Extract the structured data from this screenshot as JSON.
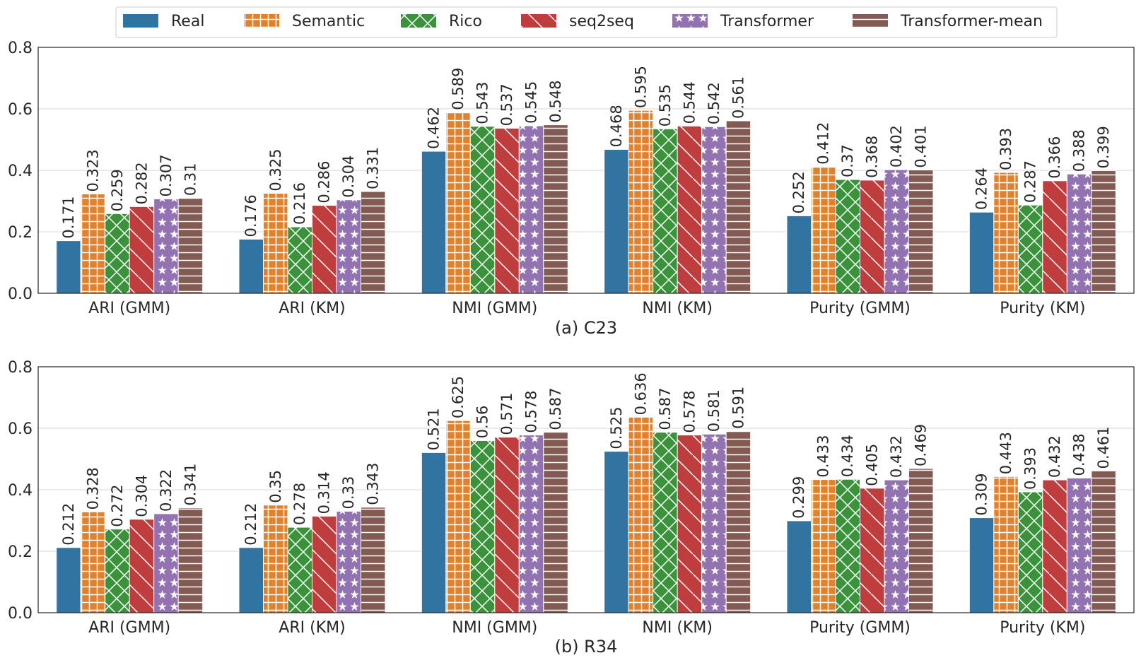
{
  "colors": {
    "Real": "#3274a1",
    "Semantic": "#e1812c",
    "Rico": "#3a923a",
    "seq2seq": "#c03d3e",
    "Transformer": "#9372b2",
    "Transformer-mean": "#845b53"
  },
  "legend": {
    "entries": [
      "Real",
      "Semantic",
      "Rico",
      "seq2seq",
      "Transformer",
      "Transformer-mean"
    ],
    "placement": "top-center"
  },
  "chart_data": [
    {
      "type": "bar",
      "subtitle": "(a) C23",
      "categories": [
        "ARI (GMM)",
        "ARI (KM)",
        "NMI (GMM)",
        "NMI (KM)",
        "Purity (GMM)",
        "Purity (KM)"
      ],
      "ylim": [
        0,
        0.8
      ],
      "yticks": [
        "0.0",
        "0.2",
        "0.4",
        "0.6",
        "0.8"
      ],
      "grid": true,
      "series": [
        {
          "name": "Real",
          "values": [
            0.171,
            0.176,
            0.462,
            0.468,
            0.252,
            0.264
          ],
          "labels": [
            "0.171",
            "0.176",
            "0.462",
            "0.468",
            "0.252",
            "0.264"
          ]
        },
        {
          "name": "Semantic",
          "values": [
            0.323,
            0.325,
            0.589,
            0.595,
            0.412,
            0.393
          ],
          "labels": [
            "0.323",
            "0.325",
            "0.589",
            "0.595",
            "0.412",
            "0.393"
          ]
        },
        {
          "name": "Rico",
          "values": [
            0.259,
            0.216,
            0.543,
            0.535,
            0.37,
            0.287
          ],
          "labels": [
            "0.259",
            "0.216",
            "0.543",
            "0.535",
            "0.37",
            "0.287"
          ]
        },
        {
          "name": "seq2seq",
          "values": [
            0.282,
            0.286,
            0.537,
            0.544,
            0.368,
            0.366
          ],
          "labels": [
            "0.282",
            "0.286",
            "0.537",
            "0.544",
            "0.368",
            "0.366"
          ]
        },
        {
          "name": "Transformer",
          "values": [
            0.307,
            0.304,
            0.545,
            0.542,
            0.402,
            0.388
          ],
          "labels": [
            "0.307",
            "0.304",
            "0.545",
            "0.542",
            "0.402",
            "0.388"
          ]
        },
        {
          "name": "Transformer-mean",
          "values": [
            0.31,
            0.331,
            0.548,
            0.561,
            0.401,
            0.399
          ],
          "labels": [
            "0.31",
            "0.331",
            "0.548",
            "0.561",
            "0.401",
            "0.399"
          ]
        }
      ]
    },
    {
      "type": "bar",
      "subtitle": "(b) R34",
      "categories": [
        "ARI (GMM)",
        "ARI (KM)",
        "NMI (GMM)",
        "NMI (KM)",
        "Purity (GMM)",
        "Purity (KM)"
      ],
      "ylim": [
        0,
        0.8
      ],
      "yticks": [
        "0.0",
        "0.2",
        "0.4",
        "0.6",
        "0.8"
      ],
      "grid": true,
      "series": [
        {
          "name": "Real",
          "values": [
            0.212,
            0.212,
            0.521,
            0.525,
            0.299,
            0.309
          ],
          "labels": [
            "0.212",
            "0.212",
            "0.521",
            "0.525",
            "0.299",
            "0.309"
          ]
        },
        {
          "name": "Semantic",
          "values": [
            0.328,
            0.35,
            0.625,
            0.636,
            0.433,
            0.443
          ],
          "labels": [
            "0.328",
            "0.35",
            "0.625",
            "0.636",
            "0.433",
            "0.443"
          ]
        },
        {
          "name": "Rico",
          "values": [
            0.272,
            0.278,
            0.56,
            0.587,
            0.434,
            0.393
          ],
          "labels": [
            "0.272",
            "0.278",
            "0.56",
            "0.587",
            "0.434",
            "0.393"
          ]
        },
        {
          "name": "seq2seq",
          "values": [
            0.304,
            0.314,
            0.571,
            0.578,
            0.405,
            0.432
          ],
          "labels": [
            "0.304",
            "0.314",
            "0.571",
            "0.578",
            "0.405",
            "0.432"
          ]
        },
        {
          "name": "Transformer",
          "values": [
            0.322,
            0.33,
            0.578,
            0.581,
            0.432,
            0.438
          ],
          "labels": [
            "0.322",
            "0.33",
            "0.578",
            "0.581",
            "0.432",
            "0.438"
          ]
        },
        {
          "name": "Transformer-mean",
          "values": [
            0.341,
            0.343,
            0.587,
            0.591,
            0.469,
            0.461
          ],
          "labels": [
            "0.341",
            "0.343",
            "0.587",
            "0.591",
            "0.469",
            "0.461"
          ]
        }
      ]
    }
  ]
}
